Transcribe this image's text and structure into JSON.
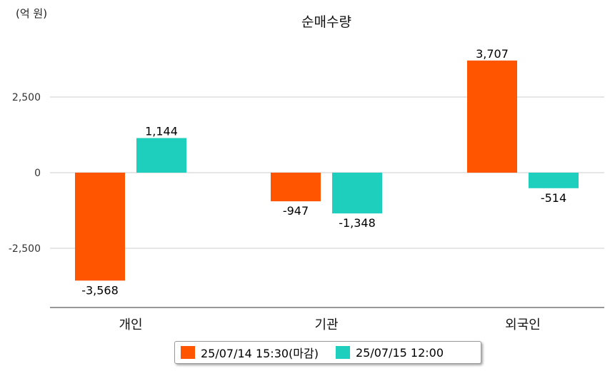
{
  "chart_data": {
    "type": "bar",
    "title": "순매수량",
    "unit_label": "(억 원)",
    "categories": [
      "개인",
      "기관",
      "외국인"
    ],
    "series": [
      {
        "name": "25/07/14 15:30(마감)",
        "color": "#ff5500",
        "values": [
          -3568,
          -947,
          3707
        ]
      },
      {
        "name": "25/07/15 12:00",
        "color": "#1ecfbe",
        "values": [
          1144,
          -1348,
          -514
        ]
      }
    ],
    "data_labels": [
      [
        "-3,568",
        "-947",
        "3,707"
      ],
      [
        "1,144",
        "-1,348",
        "-514"
      ]
    ],
    "y_ticks": [
      2500,
      0,
      -2500
    ],
    "y_tick_labels": [
      "2,500",
      "0",
      "-2,500"
    ],
    "ylim": [
      -4500,
      4500
    ],
    "grid": true,
    "legend": "bottom-center"
  }
}
